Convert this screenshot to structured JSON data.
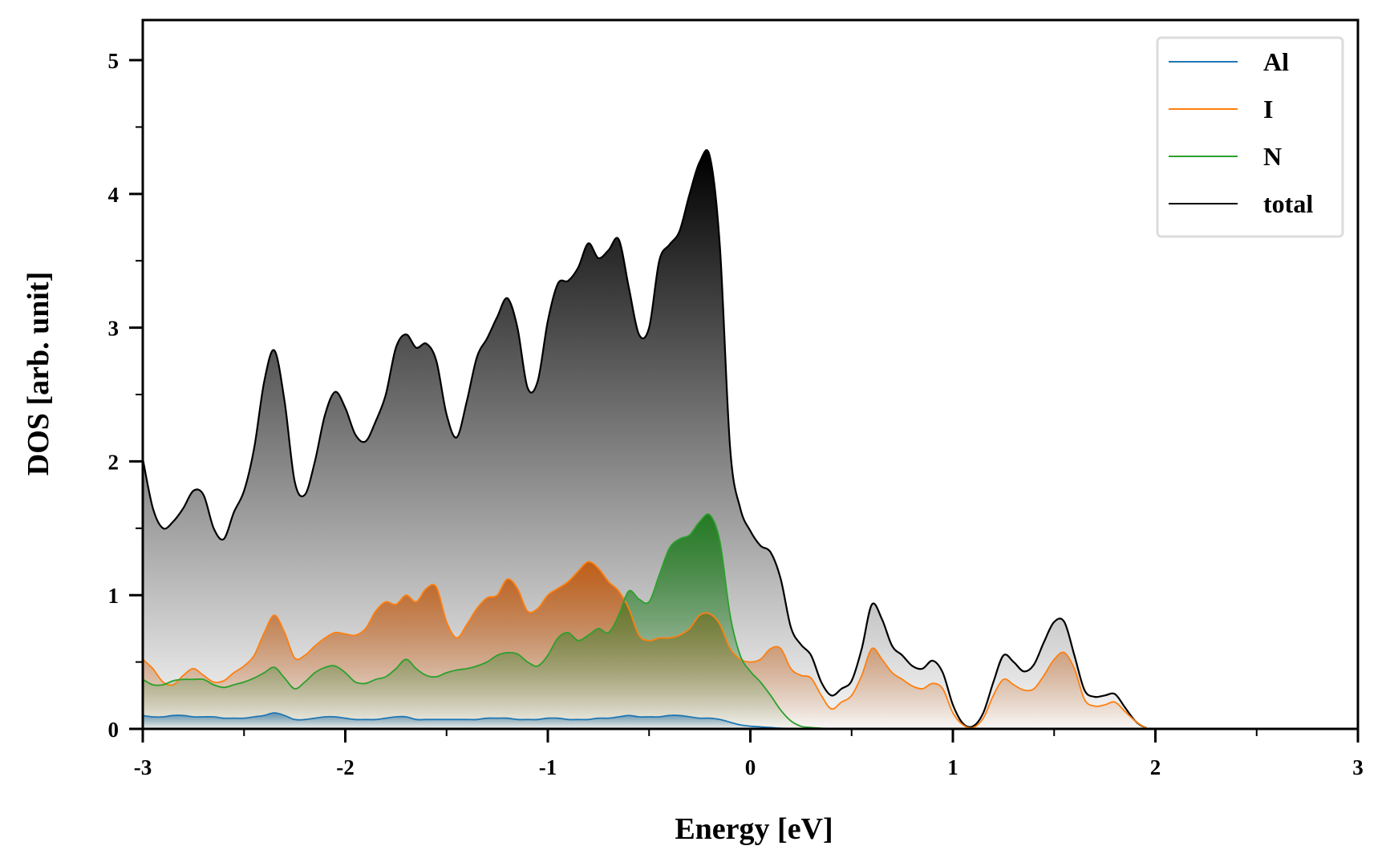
{
  "chart_data": {
    "type": "area",
    "title": "",
    "xlabel": "Energy [eV]",
    "ylabel": "DOS [arb. unit]",
    "xlim": [
      -3,
      3
    ],
    "ylim": [
      0,
      5.3
    ],
    "xticks": [
      -3,
      -2,
      -1,
      0,
      1,
      2,
      3
    ],
    "xtick_labels": [
      "-3",
      "-2",
      "-1",
      "0",
      "1",
      "2",
      "3"
    ],
    "yticks": [
      0,
      1,
      2,
      3,
      4,
      5
    ],
    "ytick_labels": [
      "0",
      "1",
      "2",
      "3",
      "4",
      "5"
    ],
    "grid": false,
    "legend_position": "top-right",
    "x": [
      -3.0,
      -2.95,
      -2.9,
      -2.85,
      -2.8,
      -2.75,
      -2.7,
      -2.65,
      -2.6,
      -2.55,
      -2.5,
      -2.45,
      -2.4,
      -2.35,
      -2.3,
      -2.25,
      -2.2,
      -2.15,
      -2.1,
      -2.05,
      -2.0,
      -1.95,
      -1.9,
      -1.85,
      -1.8,
      -1.75,
      -1.7,
      -1.65,
      -1.6,
      -1.55,
      -1.5,
      -1.45,
      -1.4,
      -1.35,
      -1.3,
      -1.25,
      -1.2,
      -1.15,
      -1.1,
      -1.05,
      -1.0,
      -0.95,
      -0.9,
      -0.85,
      -0.8,
      -0.75,
      -0.7,
      -0.65,
      -0.6,
      -0.55,
      -0.5,
      -0.45,
      -0.4,
      -0.35,
      -0.3,
      -0.25,
      -0.2,
      -0.15,
      -0.1,
      -0.05,
      0.0,
      0.05,
      0.1,
      0.15,
      0.2,
      0.25,
      0.3,
      0.35,
      0.4,
      0.45,
      0.5,
      0.55,
      0.6,
      0.65,
      0.7,
      0.75,
      0.8,
      0.85,
      0.9,
      0.95,
      1.0,
      1.05,
      1.1,
      1.15,
      1.2,
      1.25,
      1.3,
      1.35,
      1.4,
      1.45,
      1.5,
      1.55,
      1.6,
      1.65,
      1.7,
      1.75,
      1.8,
      1.85,
      1.9,
      1.95,
      2.0,
      2.5,
      3.0
    ],
    "series": [
      {
        "name": "Al",
        "color": "#1f77b4",
        "fill": "#5b8fb0",
        "values": [
          0.1,
          0.09,
          0.09,
          0.1,
          0.1,
          0.09,
          0.09,
          0.09,
          0.08,
          0.08,
          0.08,
          0.09,
          0.1,
          0.12,
          0.1,
          0.07,
          0.07,
          0.08,
          0.09,
          0.09,
          0.08,
          0.07,
          0.07,
          0.07,
          0.08,
          0.09,
          0.09,
          0.07,
          0.07,
          0.07,
          0.07,
          0.07,
          0.07,
          0.07,
          0.08,
          0.08,
          0.08,
          0.07,
          0.07,
          0.07,
          0.08,
          0.08,
          0.07,
          0.07,
          0.07,
          0.08,
          0.08,
          0.09,
          0.1,
          0.09,
          0.09,
          0.09,
          0.1,
          0.1,
          0.09,
          0.08,
          0.08,
          0.07,
          0.05,
          0.03,
          0.02,
          0.015,
          0.01,
          0.005,
          0.003,
          0.002,
          0.001,
          0,
          0,
          0,
          0,
          0,
          0,
          0,
          0,
          0,
          0,
          0,
          0,
          0,
          0,
          0,
          0,
          0,
          0,
          0,
          0,
          0,
          0,
          0,
          0,
          0,
          0,
          0,
          0,
          0,
          0,
          0,
          0,
          0,
          0,
          0,
          0
        ]
      },
      {
        "name": "I",
        "color": "#ff7f0e",
        "fill": "#c05a10",
        "values": [
          0.52,
          0.45,
          0.35,
          0.33,
          0.4,
          0.45,
          0.4,
          0.35,
          0.36,
          0.42,
          0.47,
          0.55,
          0.72,
          0.85,
          0.72,
          0.53,
          0.55,
          0.62,
          0.68,
          0.72,
          0.71,
          0.7,
          0.75,
          0.88,
          0.95,
          0.93,
          1.0,
          0.95,
          1.05,
          1.06,
          0.8,
          0.68,
          0.78,
          0.9,
          0.98,
          1.0,
          1.12,
          1.05,
          0.88,
          0.9,
          1.0,
          1.05,
          1.1,
          1.18,
          1.25,
          1.2,
          1.1,
          1.03,
          0.9,
          0.7,
          0.66,
          0.68,
          0.68,
          0.7,
          0.75,
          0.85,
          0.86,
          0.78,
          0.6,
          0.52,
          0.5,
          0.52,
          0.6,
          0.6,
          0.45,
          0.4,
          0.38,
          0.25,
          0.15,
          0.2,
          0.25,
          0.4,
          0.6,
          0.52,
          0.42,
          0.37,
          0.32,
          0.3,
          0.34,
          0.3,
          0.12,
          0.03,
          0.01,
          0.08,
          0.25,
          0.37,
          0.33,
          0.29,
          0.3,
          0.4,
          0.52,
          0.57,
          0.45,
          0.22,
          0.17,
          0.18,
          0.2,
          0.13,
          0.06,
          0.01,
          0,
          0,
          0
        ]
      },
      {
        "name": "N",
        "color": "#2ca02c",
        "fill": "#1e7a1e",
        "values": [
          0.37,
          0.33,
          0.33,
          0.36,
          0.37,
          0.37,
          0.37,
          0.33,
          0.31,
          0.33,
          0.35,
          0.38,
          0.42,
          0.46,
          0.38,
          0.3,
          0.35,
          0.42,
          0.46,
          0.47,
          0.42,
          0.35,
          0.34,
          0.37,
          0.39,
          0.45,
          0.52,
          0.45,
          0.4,
          0.39,
          0.42,
          0.44,
          0.45,
          0.47,
          0.5,
          0.55,
          0.57,
          0.56,
          0.5,
          0.47,
          0.55,
          0.68,
          0.72,
          0.66,
          0.7,
          0.75,
          0.72,
          0.85,
          1.03,
          0.97,
          0.95,
          1.15,
          1.35,
          1.42,
          1.45,
          1.55,
          1.6,
          1.4,
          0.85,
          0.55,
          0.43,
          0.35,
          0.25,
          0.14,
          0.06,
          0.02,
          0.01,
          0.005,
          0.002,
          0.001,
          0,
          0,
          0,
          0,
          0,
          0,
          0,
          0,
          0,
          0,
          0,
          0,
          0,
          0,
          0,
          0,
          0,
          0,
          0,
          0,
          0,
          0,
          0,
          0,
          0,
          0,
          0,
          0,
          0,
          0,
          0,
          0,
          0
        ]
      },
      {
        "name": "total",
        "color": "#000000",
        "fill": "#000000",
        "values": [
          2.02,
          1.65,
          1.5,
          1.55,
          1.65,
          1.78,
          1.75,
          1.5,
          1.42,
          1.62,
          1.78,
          2.1,
          2.6,
          2.83,
          2.45,
          1.85,
          1.75,
          2.0,
          2.35,
          2.52,
          2.4,
          2.2,
          2.15,
          2.3,
          2.5,
          2.85,
          2.95,
          2.85,
          2.88,
          2.75,
          2.35,
          2.18,
          2.45,
          2.78,
          2.92,
          3.08,
          3.22,
          3.0,
          2.55,
          2.6,
          3.05,
          3.33,
          3.35,
          3.45,
          3.63,
          3.52,
          3.58,
          3.66,
          3.3,
          2.95,
          3.0,
          3.5,
          3.62,
          3.72,
          4.0,
          4.24,
          4.28,
          3.6,
          2.1,
          1.65,
          1.48,
          1.37,
          1.32,
          1.12,
          0.76,
          0.63,
          0.55,
          0.35,
          0.25,
          0.3,
          0.36,
          0.6,
          0.93,
          0.82,
          0.62,
          0.55,
          0.47,
          0.45,
          0.51,
          0.42,
          0.18,
          0.04,
          0.02,
          0.12,
          0.35,
          0.55,
          0.5,
          0.43,
          0.48,
          0.65,
          0.8,
          0.8,
          0.55,
          0.29,
          0.24,
          0.25,
          0.26,
          0.16,
          0.06,
          0.01,
          0,
          0,
          0
        ]
      }
    ]
  }
}
